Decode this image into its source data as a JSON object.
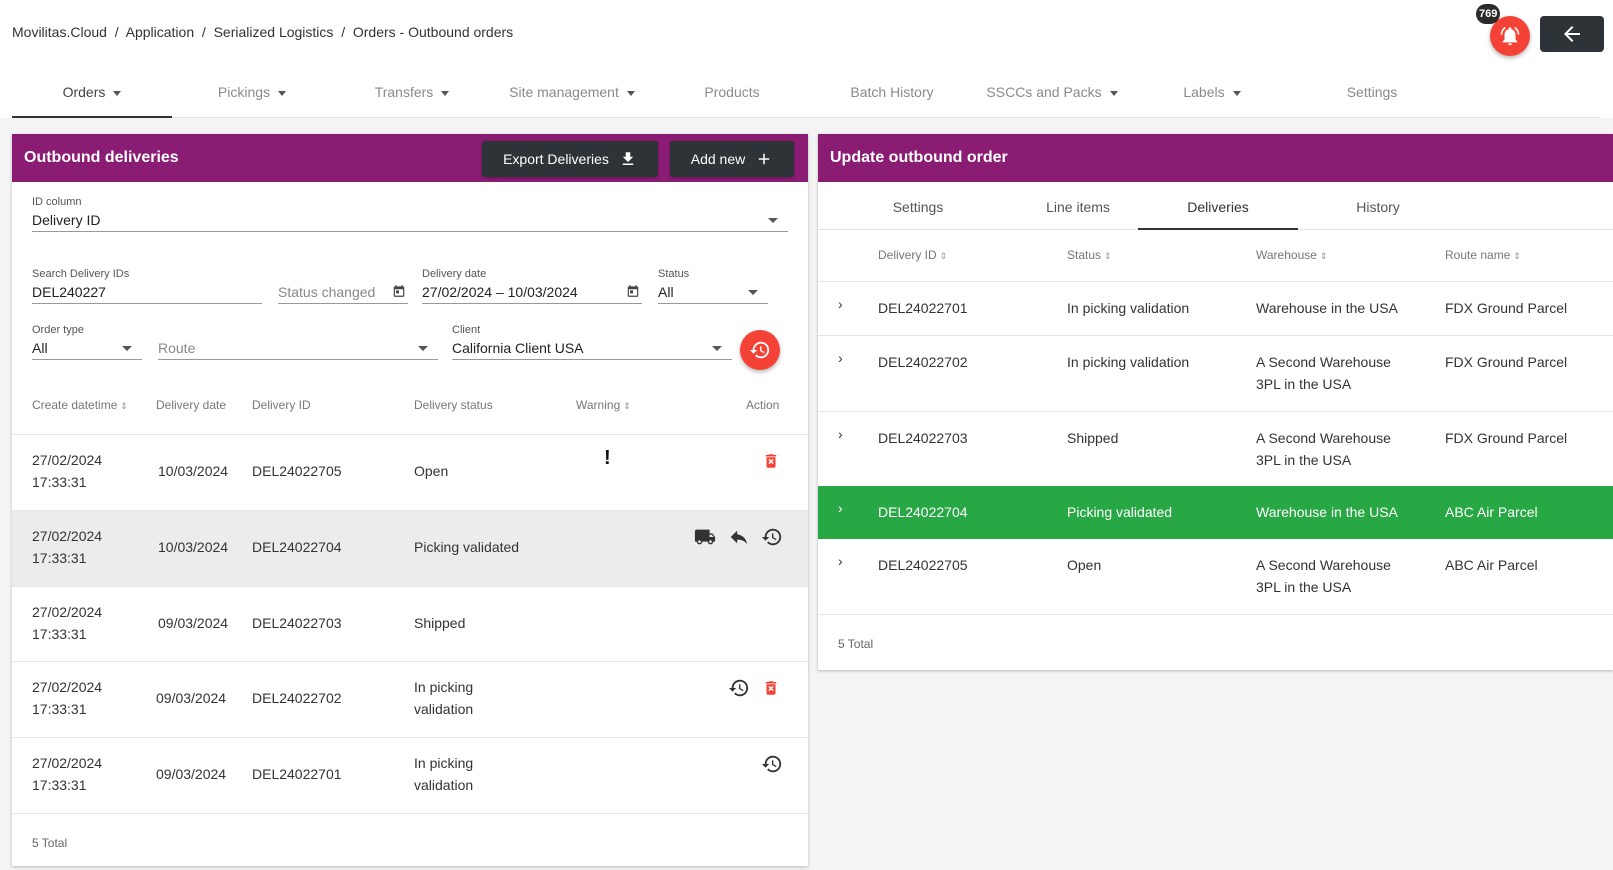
{
  "breadcrumb": [
    "Movilitas.Cloud",
    "Application",
    "Serialized Logistics",
    "Orders - Outbound orders"
  ],
  "notifications": {
    "count": "769",
    "icon": "bell-icon",
    "color": "#f44336"
  },
  "nav": {
    "tabs": [
      {
        "label": "Orders",
        "dropdown": true
      },
      {
        "label": "Pickings",
        "dropdown": true
      },
      {
        "label": "Transfers",
        "dropdown": true
      },
      {
        "label": "Site management",
        "dropdown": true
      },
      {
        "label": "Products",
        "dropdown": false
      },
      {
        "label": "Batch History",
        "dropdown": false
      },
      {
        "label": "SSCCs and Packs",
        "dropdown": true
      },
      {
        "label": "Labels",
        "dropdown": true
      },
      {
        "label": "Settings",
        "dropdown": false
      }
    ],
    "active": "Orders"
  },
  "colors": {
    "header": "#8b1c74",
    "dark_button": "#2e3338",
    "highlight": "#28a745",
    "danger": "#f44336"
  },
  "left": {
    "title": "Outbound deliveries",
    "export_label": "Export Deliveries",
    "add_label": "Add new",
    "filters": {
      "id_column": {
        "label": "ID column",
        "value": "Delivery ID"
      },
      "search": {
        "label": "Search Delivery IDs",
        "value": "DEL240227"
      },
      "status_changed": {
        "placeholder": "Status changed"
      },
      "delivery_date": {
        "label": "Delivery date",
        "value": "27/02/2024 – 10/03/2024"
      },
      "status": {
        "label": "Status",
        "value": "All"
      },
      "order_type": {
        "label": "Order type",
        "value": "All"
      },
      "route": {
        "placeholder": "Route"
      },
      "client": {
        "label": "Client",
        "value": "California Client USA"
      }
    },
    "columns": [
      "Create datetime",
      "Delivery date",
      "Delivery ID",
      "Delivery status",
      "Warning",
      "Action"
    ],
    "rows": [
      {
        "create_date": "27/02/2024",
        "create_time": "17:33:31",
        "delivery_date": "10/03/2024",
        "id": "DEL24022705",
        "status": [
          "Open"
        ],
        "warning": "!",
        "actions": [
          "delete-icon"
        ]
      },
      {
        "create_date": "27/02/2024",
        "create_time": "17:33:31",
        "delivery_date": "10/03/2024",
        "id": "DEL24022704",
        "status": [
          "Picking validated"
        ],
        "warning": "",
        "actions": [
          "truck-icon",
          "reply-icon",
          "history-icon"
        ]
      },
      {
        "create_date": "27/02/2024",
        "create_time": "17:33:31",
        "delivery_date": "09/03/2024",
        "id": "DEL24022703",
        "status": [
          "Shipped"
        ],
        "warning": "",
        "actions": []
      },
      {
        "create_date": "27/02/2024",
        "create_time": "17:33:31",
        "delivery_date": "09/03/2024",
        "id": "DEL24022702",
        "status": [
          "In picking",
          "validation"
        ],
        "warning": "",
        "actions": [
          "history-icon",
          "delete-icon"
        ]
      },
      {
        "create_date": "27/02/2024",
        "create_time": "17:33:31",
        "delivery_date": "09/03/2024",
        "id": "DEL24022701",
        "status": [
          "In picking",
          "validation"
        ],
        "warning": "",
        "actions": [
          "history-icon"
        ]
      }
    ],
    "total": "5 Total"
  },
  "right": {
    "title": "Update outbound order",
    "tabs": [
      "Settings",
      "Line items",
      "Deliveries",
      "History"
    ],
    "active_tab": "Deliveries",
    "columns": [
      "Delivery ID",
      "Status",
      "Warehouse",
      "Route name"
    ],
    "rows": [
      {
        "id": "DEL24022701",
        "status": "In picking validation",
        "warehouse": [
          "Warehouse in the USA"
        ],
        "route": "FDX Ground Parcel",
        "highlight": false
      },
      {
        "id": "DEL24022702",
        "status": "In picking validation",
        "warehouse": [
          "A Second Warehouse",
          "3PL in the USA"
        ],
        "route": "FDX Ground Parcel",
        "highlight": false
      },
      {
        "id": "DEL24022703",
        "status": "Shipped",
        "warehouse": [
          "A Second Warehouse",
          "3PL in the USA"
        ],
        "route": "FDX Ground Parcel",
        "highlight": false
      },
      {
        "id": "DEL24022704",
        "status": "Picking validated",
        "warehouse": [
          "Warehouse in the USA"
        ],
        "route": "ABC Air Parcel",
        "highlight": true
      },
      {
        "id": "DEL24022705",
        "status": "Open",
        "warehouse": [
          "A Second Warehouse",
          "3PL in the USA"
        ],
        "route": "ABC Air Parcel",
        "highlight": false
      }
    ],
    "total": "5 Total"
  }
}
